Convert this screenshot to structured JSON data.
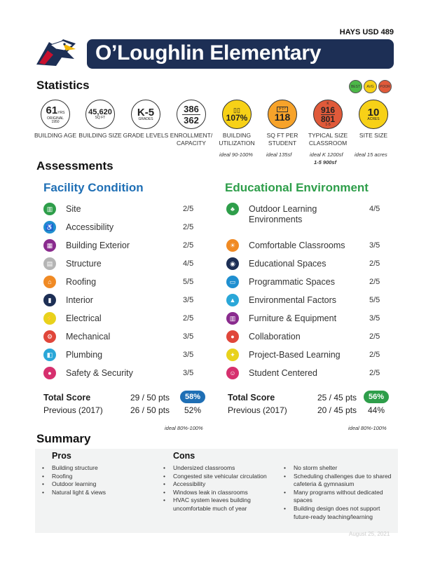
{
  "header": {
    "district": "HAYS USD 489",
    "title": "O’Loughlin Elementary"
  },
  "statistics": {
    "heading": "Statistics",
    "legend": [
      "BEST",
      "AVG",
      "POOR"
    ],
    "items": [
      {
        "value": "61",
        "unit": "YRS",
        "sub": "ORIGINAL 1950",
        "label": "BUILDING AGE"
      },
      {
        "value": "45,620",
        "unit": "SQ FT",
        "label": "BUILDING SIZE"
      },
      {
        "value": "K-5",
        "unit": "GRADES",
        "label": "GRADE LEVELS"
      },
      {
        "value": "386",
        "value2": "362",
        "label": "ENROLLMENT/ CAPACITY"
      },
      {
        "value": "107%",
        "label": "BUILDING UTILIZATION",
        "ideal": "ideal 90-100%"
      },
      {
        "value": "118",
        "unit": "FT²",
        "label": "SQ FT PER STUDENT",
        "ideal": "ideal 135sf"
      },
      {
        "value": "916",
        "value2": "801",
        "top": "K",
        "bottom": "1-5",
        "label": "TYPICAL SIZE CLASSROOM",
        "ideal": "ideal K 1200sf",
        "ideal2": "1-5 900sf"
      },
      {
        "value": "10",
        "unit": "ACRES",
        "label": "SITE SIZE",
        "ideal": "ideal 15 acres"
      }
    ]
  },
  "assessments": {
    "heading": "Assessments",
    "facility": {
      "title": "Facility Condition",
      "color": "#1f6fb5",
      "rows": [
        {
          "label": "Site",
          "score": "2/5",
          "icon": "fence-icon",
          "color": "#2e9e4a"
        },
        {
          "label": "Accessibility",
          "score": "2/5",
          "icon": "wheelchair-icon",
          "color": "#1f8fd0"
        },
        {
          "label": "Building Exterior",
          "score": "2/5",
          "icon": "brick-wall-icon",
          "color": "#8a2b8e"
        },
        {
          "label": "Structure",
          "score": "4/5",
          "icon": "structure-icon",
          "color": "#b5b5b5"
        },
        {
          "label": "Roofing",
          "score": "5/5",
          "icon": "roof-icon",
          "color": "#f08a24"
        },
        {
          "label": "Interior",
          "score": "3/5",
          "icon": "door-icon",
          "color": "#1d2f55"
        },
        {
          "label": "Electrical",
          "score": "2/5",
          "icon": "plug-icon",
          "color": "#e8d21c"
        },
        {
          "label": "Mechanical",
          "score": "3/5",
          "icon": "gear-icon",
          "color": "#e0463a"
        },
        {
          "label": "Plumbing",
          "score": "3/5",
          "icon": "faucet-icon",
          "color": "#2aa7d8"
        },
        {
          "label": "Safety & Security",
          "score": "3/5",
          "icon": "lock-icon",
          "color": "#d6306e"
        }
      ],
      "total_label": "Total Score",
      "total": "29 / 50 pts",
      "total_pct": "58%",
      "pct_color": "#1f6fb5",
      "previous_label": "Previous (2017)",
      "previous": "26 / 50 pts",
      "previous_pct": "52%",
      "ideal": "ideal 80%-100%"
    },
    "educational": {
      "title": "Educational Environment",
      "color": "#2e9e4a",
      "rows": [
        {
          "label": "Outdoor Learning",
          "label2": "Environments",
          "score": "4/5",
          "icon": "tree-icon",
          "color": "#2e9e4a"
        },
        {
          "label": "Comfortable Classrooms",
          "score": "3/5",
          "icon": "sun-icon",
          "color": "#f08a24"
        },
        {
          "label": "Educational Spaces",
          "score": "2/5",
          "icon": "globe-icon",
          "color": "#1d2f55"
        },
        {
          "label": "Programmatic Spaces",
          "score": "2/5",
          "icon": "chat-icon",
          "color": "#1f8fd0"
        },
        {
          "label": "Environmental Factors",
          "score": "5/5",
          "icon": "graduation-cap-icon",
          "color": "#2aa7d8"
        },
        {
          "label": "Furniture & Equipment",
          "score": "3/5",
          "icon": "furniture-icon",
          "color": "#8a2b8e"
        },
        {
          "label": "Collaboration",
          "score": "2/5",
          "icon": "people-icon",
          "color": "#e0463a"
        },
        {
          "label": "Project-Based Learning",
          "score": "2/5",
          "icon": "lightbulb-icon",
          "color": "#e8d21c"
        },
        {
          "label": "Student Centered",
          "score": "2/5",
          "icon": "student-icon",
          "color": "#d6306e"
        }
      ],
      "total_label": "Total Score",
      "total": "25 / 45 pts",
      "total_pct": "56%",
      "pct_color": "#2e9e4a",
      "previous_label": "Previous (2017)",
      "previous": "20 / 45 pts",
      "previous_pct": "44%",
      "ideal": "ideal 80%-100%"
    }
  },
  "summary": {
    "heading": "Summary",
    "pros_heading": "Pros",
    "pros": [
      "Building structure",
      "Roofing",
      "Outdoor learning",
      "Natural light & views"
    ],
    "cons_heading": "Cons",
    "cons_a": [
      "Undersized classrooms",
      "Congested site vehicular circulation",
      "Accessibility",
      "Windows leak in classrooms",
      "HVAC system leaves building uncomfortable much of year"
    ],
    "cons_b": [
      "No storm shelter",
      "Scheduling challenges due to shared cafeteria & gymnasium",
      "Many programs without dedicated spaces",
      "Building design does not support future-ready teaching/learning"
    ],
    "date": "August 25, 2021"
  }
}
